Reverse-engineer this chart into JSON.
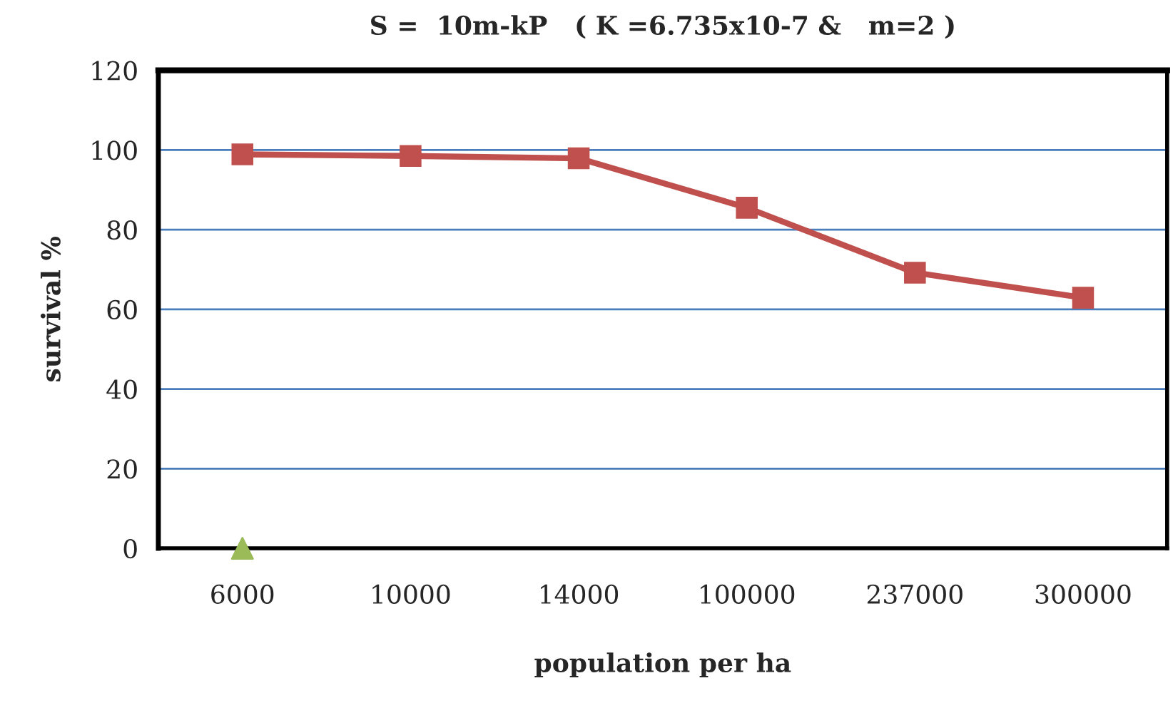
{
  "chart_data": {
    "type": "line",
    "title": "S =  10m-kP   ( K =6.735x10-7 &   m=2 )",
    "xlabel": "population per ha",
    "ylabel": "survival %",
    "categories": [
      "6000",
      "10000",
      "14000",
      "100000",
      "237000",
      "300000"
    ],
    "series": [
      {
        "color": "#c0504d",
        "marker": "square",
        "line_style": "solid",
        "values": [
          98.9,
          98.5,
          97.9,
          85.5,
          69.2,
          62.9
        ]
      },
      {
        "type": "scatter",
        "color": "#9bbb59",
        "marker": "triangle",
        "values": [
          0,
          null,
          null,
          null,
          null,
          null
        ]
      }
    ],
    "ylim": [
      0,
      120
    ],
    "yticks": [
      0,
      20,
      40,
      60,
      80,
      100,
      120
    ],
    "grid": "y"
  }
}
